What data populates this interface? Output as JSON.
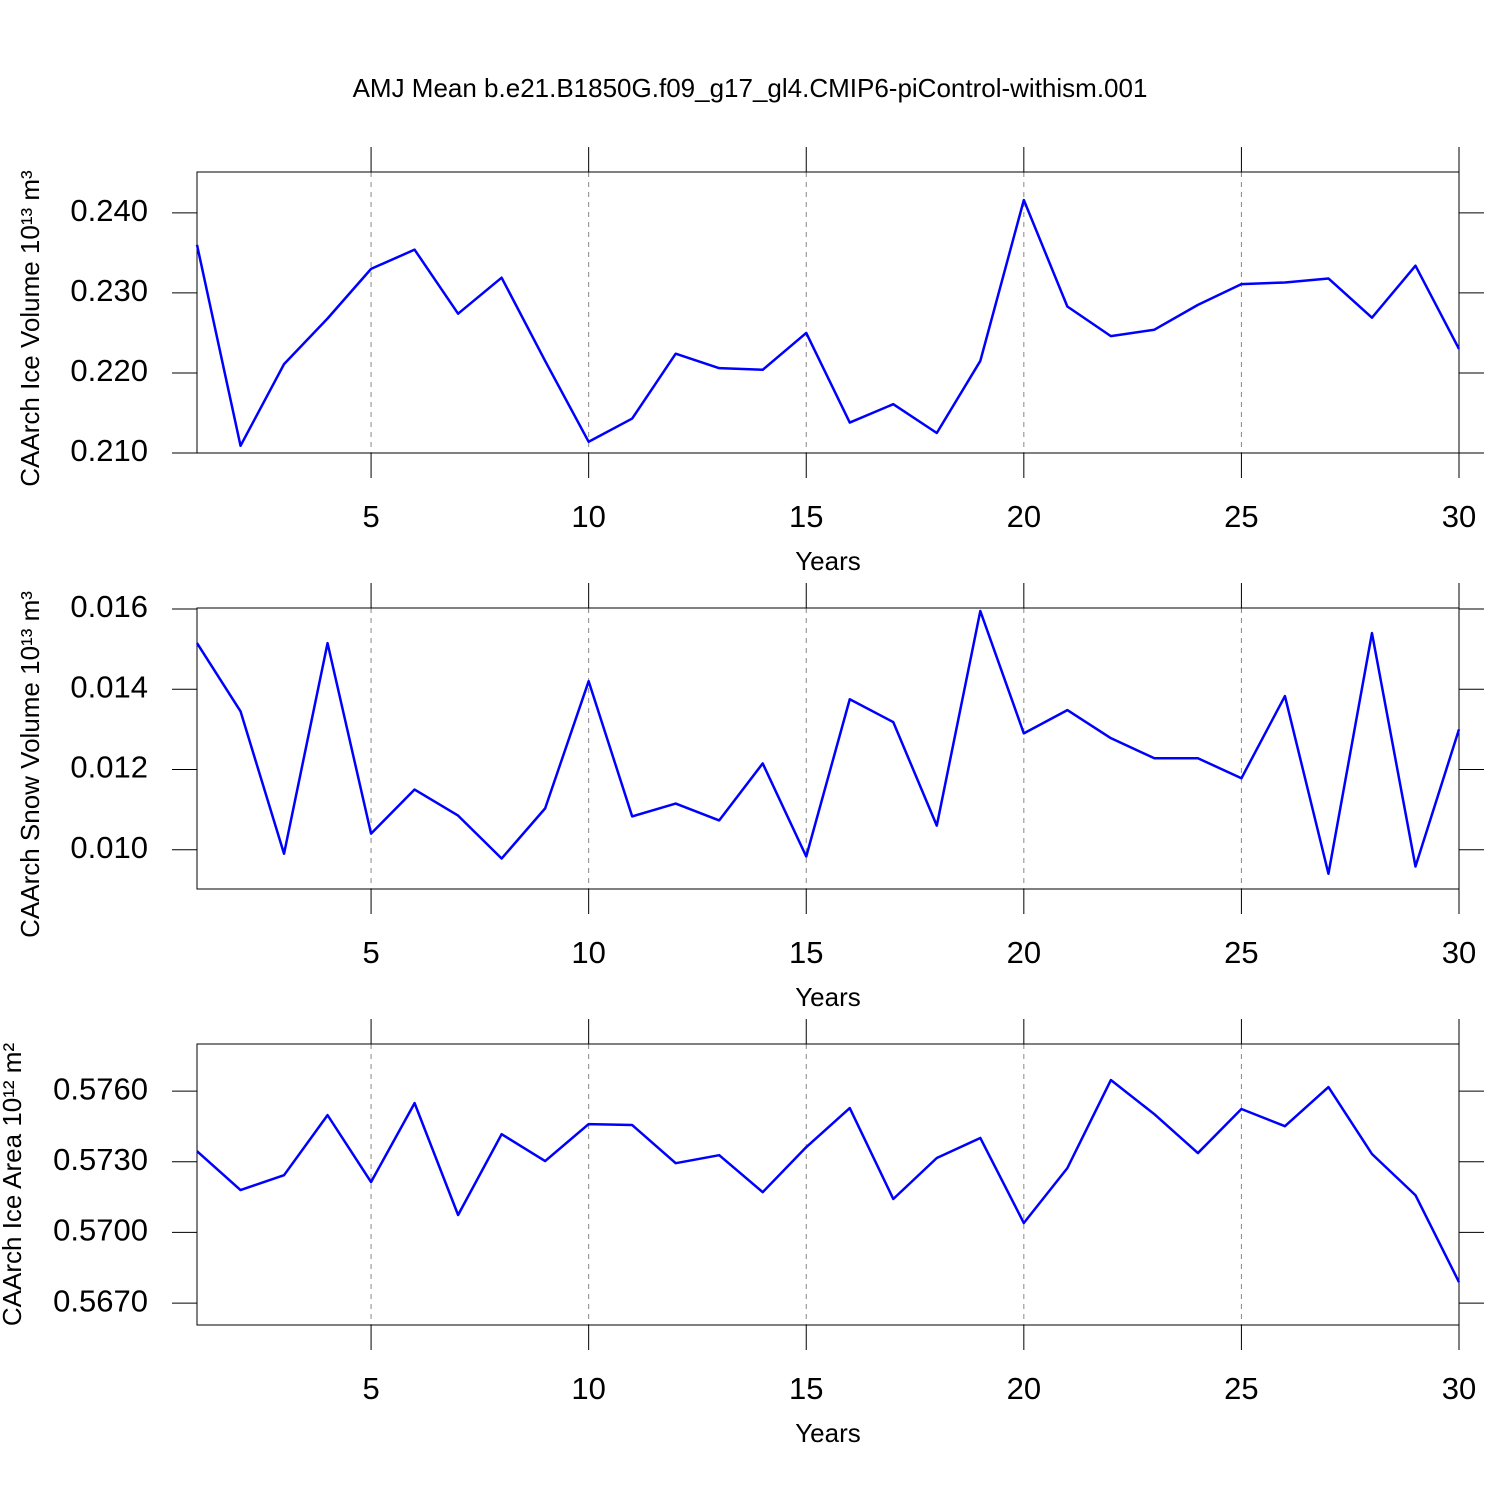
{
  "chart_data": [
    {
      "type": "line",
      "title": "AMJ Mean b.e21.B1850G.f09_g17_gl4.CMIP6-piControl-withism.001",
      "xlabel": "Years",
      "ylabel": "CAArch Ice Volume 10¹³ m³",
      "color": "#0000ff",
      "xgrid": true,
      "x": [
        1,
        2,
        3,
        4,
        5,
        6,
        7,
        8,
        9,
        10,
        11,
        12,
        13,
        14,
        15,
        16,
        17,
        18,
        19,
        20,
        21,
        22,
        23,
        24,
        25,
        26,
        27,
        28,
        29,
        30
      ],
      "values": [
        0.236,
        0.2109,
        0.2211,
        0.2268,
        0.233,
        0.2354,
        0.2274,
        0.2319,
        0.2215,
        0.2114,
        0.2143,
        0.2224,
        0.2206,
        0.2204,
        0.225,
        0.2138,
        0.2161,
        0.2125,
        0.2215,
        0.2416,
        0.2283,
        0.2246,
        0.2254,
        0.2285,
        0.2311,
        0.2313,
        0.2318,
        0.2269,
        0.2334,
        0.223
      ],
      "xlim": [
        1,
        30
      ],
      "xticks": [
        5,
        10,
        15,
        20,
        25,
        30
      ],
      "ylim": [
        0.21,
        0.2451
      ],
      "yticks": [
        {
          "value": 0.21,
          "label": "0.210"
        },
        {
          "value": 0.22,
          "label": "0.220"
        },
        {
          "value": 0.23,
          "label": "0.230"
        },
        {
          "value": 0.24,
          "label": "0.240"
        }
      ]
    },
    {
      "type": "line",
      "xlabel": "Years",
      "ylabel": "CAArch Snow Volume 10¹³ m³",
      "color": "#0000ff",
      "xgrid": true,
      "x": [
        1,
        2,
        3,
        4,
        5,
        6,
        7,
        8,
        9,
        10,
        11,
        12,
        13,
        14,
        15,
        16,
        17,
        18,
        19,
        20,
        21,
        22,
        23,
        24,
        25,
        26,
        27,
        28,
        29,
        30
      ],
      "values": [
        0.01515,
        0.01345,
        0.0099,
        0.01515,
        0.0104,
        0.0115,
        0.01085,
        0.00978,
        0.01103,
        0.0142,
        0.01083,
        0.01115,
        0.01073,
        0.01215,
        0.00983,
        0.01375,
        0.01318,
        0.0106,
        0.01595,
        0.0129,
        0.01348,
        0.01278,
        0.01228,
        0.01228,
        0.01178,
        0.01383,
        0.0094,
        0.0154,
        0.00958,
        0.013
      ],
      "xlim": [
        1,
        30
      ],
      "xticks": [
        5,
        10,
        15,
        20,
        25,
        30
      ],
      "ylim": [
        0.00902,
        0.016025
      ],
      "yticks": [
        {
          "value": 0.01,
          "label": "0.010"
        },
        0.012,
        0.014,
        0.016
      ]
    },
    {
      "type": "line",
      "xlabel": "Years",
      "ylabel": "CAArch Ice Area 10¹² m²",
      "color": "#0000ff",
      "xgrid": true,
      "x": [
        1,
        2,
        3,
        4,
        5,
        6,
        7,
        8,
        9,
        10,
        11,
        12,
        13,
        14,
        15,
        16,
        17,
        18,
        19,
        20,
        21,
        22,
        23,
        24,
        25,
        26,
        27,
        28,
        29,
        30
      ],
      "values": [
        0.57345,
        0.5718,
        0.57243,
        0.57498,
        0.57214,
        0.57549,
        0.57074,
        0.57417,
        0.57303,
        0.5746,
        0.57456,
        0.57294,
        0.57328,
        0.57171,
        0.57362,
        0.57528,
        0.57142,
        0.57316,
        0.57401,
        0.5704,
        0.57273,
        0.57647,
        0.57502,
        0.57337,
        0.57524,
        0.57451,
        0.57617,
        0.57333,
        0.57158,
        0.56789
      ],
      "xlim": [
        1,
        30
      ],
      "xticks": [
        5,
        10,
        15,
        20,
        25,
        30
      ],
      "ylim": [
        0.56607,
        0.578
      ],
      "yticks": [
        {
          "value": 0.567,
          "label": "0.5670"
        },
        {
          "value": 0.57,
          "label": "0.5700"
        },
        {
          "value": 0.573,
          "label": "0.5730"
        },
        {
          "value": 0.576,
          "label": "0.5760"
        }
      ]
    }
  ]
}
